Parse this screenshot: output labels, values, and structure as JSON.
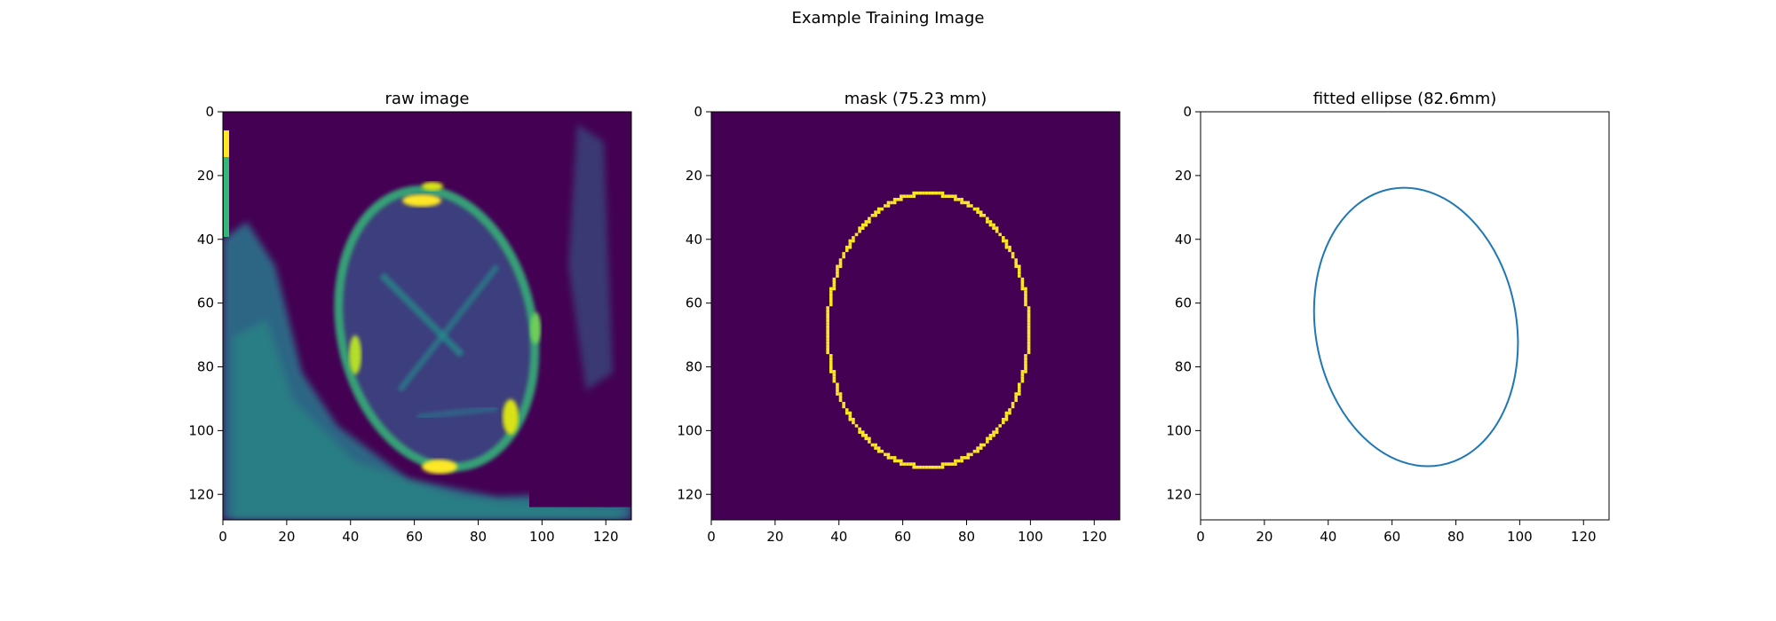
{
  "figure": {
    "suptitle": "Example Training Image"
  },
  "chart_data": [
    {
      "type": "heatmap",
      "title": "raw image",
      "xlabel": "",
      "ylabel": "",
      "xlim": [
        0,
        128
      ],
      "ylim": [
        128,
        0
      ],
      "xticks": [
        0,
        20,
        40,
        60,
        80,
        100,
        120
      ],
      "yticks": [
        0,
        20,
        40,
        60,
        80,
        100,
        120
      ],
      "colormap": "viridis",
      "background": "#440154",
      "skull_ellipse": {
        "cx": 67,
        "cy": 68,
        "rx": 30,
        "ry": 44,
        "angle_deg": -12
      },
      "dark_patch": {
        "x": [
          96,
          128
        ],
        "y": [
          104,
          124
        ]
      }
    },
    {
      "type": "heatmap",
      "title": "mask (75.23 mm)",
      "xlabel": "",
      "ylabel": "",
      "xlim": [
        0,
        128
      ],
      "ylim": [
        128,
        0
      ],
      "xticks": [
        0,
        20,
        40,
        60,
        80,
        100,
        120
      ],
      "yticks": [
        0,
        20,
        40,
        60,
        80,
        100,
        120
      ],
      "background": "#440154",
      "mask_color": "#fde725",
      "contour": {
        "cx": 67.5,
        "cy": 68,
        "rx": 31.5,
        "ry": 43,
        "angle_deg": 0
      }
    },
    {
      "type": "line",
      "title": "fitted ellipse (82.6mm)",
      "xlabel": "",
      "ylabel": "",
      "xlim": [
        0,
        128
      ],
      "ylim": [
        128,
        0
      ],
      "xticks": [
        0,
        20,
        40,
        60,
        80,
        100,
        120
      ],
      "yticks": [
        0,
        20,
        40,
        60,
        80,
        100,
        120
      ],
      "line_color": "#1f77b4",
      "ellipse": {
        "cx": 67.5,
        "cy": 67.5,
        "rx": 31.5,
        "ry": 44,
        "angle_deg": -10
      }
    }
  ]
}
